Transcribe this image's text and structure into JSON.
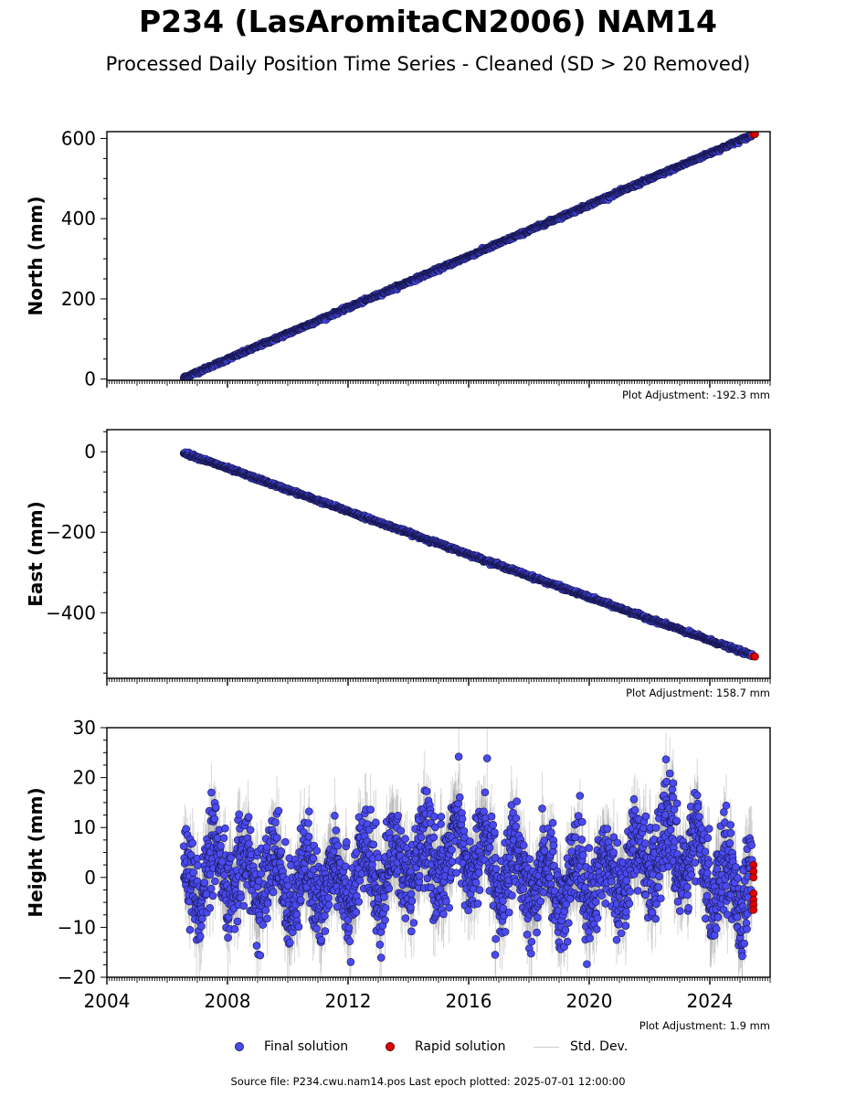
{
  "title": "P234 (LasAromitaCN2006) NAM14",
  "subtitle": "Processed Daily Position Time Series - Cleaned (SD > 20 Removed)",
  "colors": {
    "final": "#4a4af0",
    "rapid": "#e00000",
    "stddev": "#b0b0b0"
  },
  "legend": {
    "final": "Final solution",
    "rapid": "Rapid solution",
    "std": "Std. Dev."
  },
  "footer": "Source file: P234.cwu.nam14.pos  Last epoch plotted: 2025-07-01 12:00:00",
  "chart_data": [
    {
      "type": "scatter",
      "ylabel": "North (mm)",
      "xlim": [
        2004,
        2026
      ],
      "ylim": [
        -3,
        617
      ],
      "yticks": [
        0,
        200,
        400,
        600
      ],
      "ytick_labels": [
        "0",
        "200",
        "400",
        "600"
      ],
      "xtick_labels_visible": false,
      "adjustment": "Plot Adjustment: -192.3 mm",
      "series": [
        {
          "name": "Final solution",
          "start": [
            2006.55,
            3
          ],
          "end": [
            2025.4,
            608
          ],
          "noise": 2
        },
        {
          "name": "Rapid solution",
          "points": [
            [
              2025.45,
              610
            ],
            [
              2025.5,
              611
            ]
          ]
        }
      ]
    },
    {
      "type": "scatter",
      "ylabel": "East (mm)",
      "xlim": [
        2004,
        2026
      ],
      "ylim": [
        -563,
        55
      ],
      "yticks": [
        -400,
        -200,
        0
      ],
      "ytick_labels": [
        "−400",
        "−200",
        "0"
      ],
      "xtick_labels_visible": false,
      "adjustment": "Plot Adjustment: 158.7 mm",
      "series": [
        {
          "name": "Final solution",
          "start": [
            2006.55,
            -2
          ],
          "end": [
            2025.4,
            -506
          ],
          "noise": 2
        },
        {
          "name": "Rapid solution",
          "points": [
            [
              2025.45,
              -508
            ],
            [
              2025.5,
              -509
            ]
          ]
        }
      ]
    },
    {
      "type": "scatter",
      "ylabel": "Height (mm)",
      "xlim": [
        2004,
        2026
      ],
      "ylim": [
        -20,
        30
      ],
      "yticks": [
        -20,
        -10,
        0,
        10,
        20,
        30
      ],
      "ytick_labels": [
        "−20",
        "−10",
        "0",
        "10",
        "20",
        "30"
      ],
      "xticks": [
        2004,
        2008,
        2012,
        2016,
        2020,
        2024
      ],
      "xtick_labels": [
        "2004",
        "2008",
        "2012",
        "2016",
        "2020",
        "2024"
      ],
      "xtick_labels_visible": true,
      "adjustment": "Plot Adjustment: 1.9 mm",
      "series": [
        {
          "name": "Final solution",
          "x_range": [
            2006.55,
            2025.4
          ],
          "noise": 6,
          "seasonal_centers": [
            [
              2006.6,
              0
            ],
            [
              2008.5,
              2
            ],
            [
              2010.5,
              -3
            ],
            [
              2012.5,
              1
            ],
            [
              2014.5,
              6
            ],
            [
              2015.8,
              12
            ],
            [
              2017.5,
              0
            ],
            [
              2019.5,
              -3
            ],
            [
              2021.5,
              5
            ],
            [
              2022.7,
              14
            ],
            [
              2024.5,
              -2
            ],
            [
              2025.4,
              -3
            ]
          ],
          "seasonal_amplitude": 5
        },
        {
          "name": "Rapid solution",
          "points": [
            [
              2025.45,
              2.5
            ],
            [
              2025.45,
              1.2
            ],
            [
              2025.45,
              0
            ],
            [
              2025.45,
              -3.2
            ],
            [
              2025.45,
              -4.5
            ],
            [
              2025.45,
              -5.5
            ],
            [
              2025.45,
              -6.5
            ]
          ]
        }
      ]
    }
  ]
}
